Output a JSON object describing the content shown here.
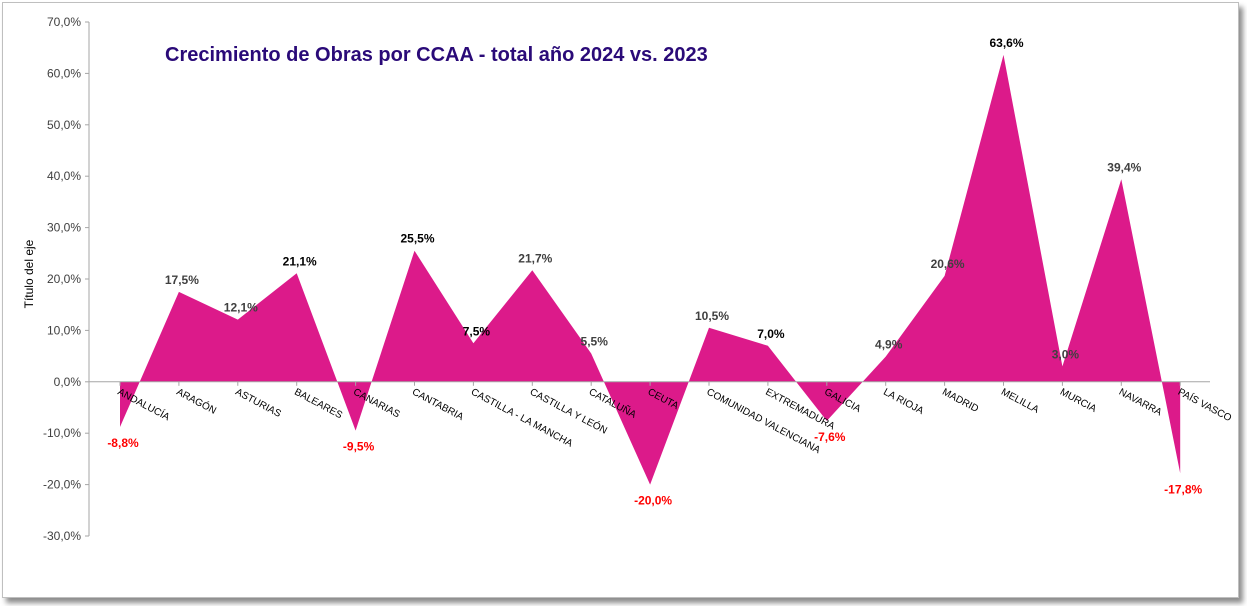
{
  "chart_data": {
    "type": "area",
    "title": "Crecimiento de Obras por CCAA - total año 2024 vs. 2023",
    "ylabel": "Título del eje",
    "xlabel": "",
    "ylim": [
      -30,
      70
    ],
    "y_ticks": [
      "-30,0%",
      "-20,0%",
      "-10,0%",
      "0,0%",
      "10,0%",
      "20,0%",
      "30,0%",
      "40,0%",
      "50,0%",
      "60,0%",
      "70,0%"
    ],
    "categories": [
      "ANDALUCÍA",
      "ARAGÓN",
      "ASTURIAS",
      "BALEARES",
      "CANARIAS",
      "CANTABRIA",
      "CASTILLA - LA MANCHA",
      "CASTILLA Y LEÓN",
      "CATALUÑA",
      "CEUTA",
      "COMUNIDAD VALENCIANA",
      "EXTREMADURA",
      "GALICIA",
      "LA RIOJA",
      "MADRID",
      "MELILLA",
      "MURCIA",
      "NAVARRA",
      "PAÍS VASCO"
    ],
    "values": [
      -8.8,
      17.5,
      12.1,
      21.1,
      -9.5,
      25.5,
      7.5,
      21.7,
      5.5,
      -20.0,
      10.5,
      7.0,
      -7.6,
      4.9,
      20.6,
      63.6,
      3.0,
      39.4,
      -17.8
    ],
    "data_labels": [
      "-8,8%",
      "17,5%",
      "12,1%",
      "21,1%",
      "-9,5%",
      "25,5%",
      "7,5%",
      "21,7%",
      "5,5%",
      "-20,0%",
      "10,5%",
      "7,0%",
      "-7,6%",
      "4,9%",
      "20,6%",
      "63,6%",
      "3,0%",
      "39,4%",
      "-17,8%"
    ],
    "grid": false,
    "legend": "none",
    "colors": {
      "fill": "#dc1a8a",
      "title": "#2a0a78",
      "negative_label": "#ff0000",
      "positive_label": "#404040",
      "axis": "#a6a6a6"
    }
  }
}
